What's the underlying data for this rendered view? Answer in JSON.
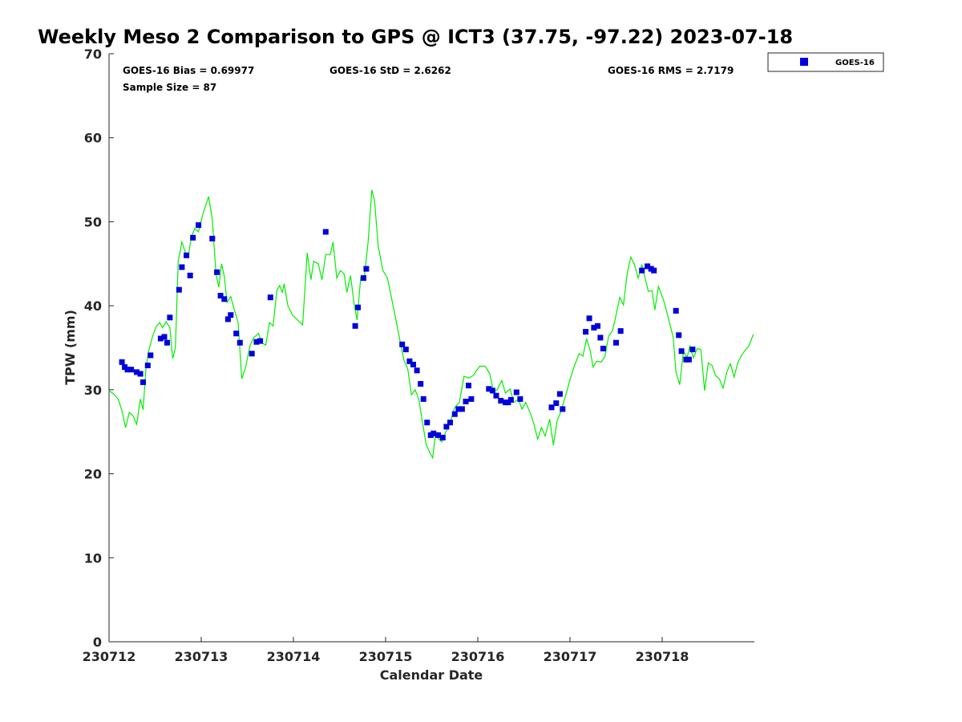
{
  "chart_data": {
    "type": "scatter",
    "title": "Weekly Meso 2 Comparison to GPS @ ICT3 (37.75, -97.22) 2023-07-18",
    "xlabel": "Calendar Date",
    "ylabel": "TPW (mm)",
    "xlim": [
      230712.0,
      230719.0
    ],
    "ylim": [
      0,
      70
    ],
    "x_ticks": [
      230712,
      230713,
      230714,
      230715,
      230716,
      230717,
      230718
    ],
    "x_tick_labels": [
      "230712",
      "230713",
      "230714",
      "230715",
      "230716",
      "230717",
      "230718"
    ],
    "y_ticks": [
      0,
      10,
      20,
      30,
      40,
      50,
      60,
      70
    ],
    "y_tick_labels": [
      "0",
      "10",
      "20",
      "30",
      "40",
      "50",
      "60",
      "70"
    ],
    "grid": false,
    "legend_position": "top-right, outside plot",
    "stats": {
      "bias": "GOES-16 Bias = 0.69977",
      "std": "GOES-16 StD = 2.6262",
      "rms": "GOES-16 RMS = 2.7179",
      "sample_size": "Sample Size = 87"
    },
    "series": [
      {
        "name": "GOES-16",
        "type": "scatter",
        "color": "#0000dd",
        "marker": "square",
        "points": [
          [
            230712.14,
            33.3
          ],
          [
            230712.17,
            32.7
          ],
          [
            230712.2,
            32.4
          ],
          [
            230712.24,
            32.4
          ],
          [
            230712.3,
            32.1
          ],
          [
            230712.34,
            31.9
          ],
          [
            230712.37,
            30.9
          ],
          [
            230712.42,
            32.9
          ],
          [
            230712.45,
            34.1
          ],
          [
            230712.56,
            36.1
          ],
          [
            230712.6,
            36.3
          ],
          [
            230712.63,
            35.6
          ],
          [
            230712.66,
            38.6
          ],
          [
            230712.76,
            41.9
          ],
          [
            230712.79,
            44.6
          ],
          [
            230712.84,
            46.0
          ],
          [
            230712.88,
            43.6
          ],
          [
            230712.91,
            48.1
          ],
          [
            230712.97,
            49.6
          ],
          [
            230713.12,
            48.0
          ],
          [
            230713.17,
            44.0
          ],
          [
            230713.21,
            41.2
          ],
          [
            230713.25,
            40.8
          ],
          [
            230713.29,
            38.4
          ],
          [
            230713.32,
            38.9
          ],
          [
            230713.38,
            36.7
          ],
          [
            230713.42,
            35.6
          ],
          [
            230713.55,
            34.3
          ],
          [
            230713.6,
            35.7
          ],
          [
            230713.64,
            35.8
          ],
          [
            230713.75,
            41.0
          ],
          [
            230714.35,
            48.8
          ],
          [
            230714.67,
            37.6
          ],
          [
            230714.7,
            39.8
          ],
          [
            230714.76,
            43.3
          ],
          [
            230714.79,
            44.4
          ],
          [
            230715.18,
            35.4
          ],
          [
            230715.22,
            34.8
          ],
          [
            230715.26,
            33.4
          ],
          [
            230715.3,
            33.0
          ],
          [
            230715.34,
            32.3
          ],
          [
            230715.38,
            30.7
          ],
          [
            230715.41,
            28.9
          ],
          [
            230715.45,
            26.1
          ],
          [
            230715.49,
            24.6
          ],
          [
            230715.52,
            24.8
          ],
          [
            230715.57,
            24.6
          ],
          [
            230715.62,
            24.3
          ],
          [
            230715.66,
            25.6
          ],
          [
            230715.7,
            26.1
          ],
          [
            230715.75,
            27.1
          ],
          [
            230715.79,
            27.7
          ],
          [
            230715.83,
            27.7
          ],
          [
            230715.87,
            28.6
          ],
          [
            230715.9,
            30.5
          ],
          [
            230715.93,
            28.9
          ],
          [
            230716.12,
            30.1
          ],
          [
            230716.16,
            29.9
          ],
          [
            230716.2,
            29.3
          ],
          [
            230716.25,
            28.7
          ],
          [
            230716.3,
            28.5
          ],
          [
            230716.33,
            28.5
          ],
          [
            230716.36,
            28.8
          ],
          [
            230716.42,
            29.7
          ],
          [
            230716.46,
            28.9
          ],
          [
            230716.8,
            27.9
          ],
          [
            230716.85,
            28.4
          ],
          [
            230716.89,
            29.5
          ],
          [
            230716.92,
            27.7
          ],
          [
            230717.17,
            36.9
          ],
          [
            230717.21,
            38.5
          ],
          [
            230717.26,
            37.4
          ],
          [
            230717.3,
            37.6
          ],
          [
            230717.33,
            36.2
          ],
          [
            230717.36,
            34.9
          ],
          [
            230717.5,
            35.6
          ],
          [
            230717.55,
            37.0
          ],
          [
            230717.78,
            44.2
          ],
          [
            230717.84,
            44.7
          ],
          [
            230717.88,
            44.4
          ],
          [
            230717.91,
            44.2
          ],
          [
            230718.15,
            39.4
          ],
          [
            230718.18,
            36.5
          ],
          [
            230718.21,
            34.6
          ],
          [
            230718.26,
            33.6
          ],
          [
            230718.29,
            33.6
          ],
          [
            230718.33,
            34.8
          ]
        ]
      },
      {
        "type": "line",
        "color": "#00ee00",
        "points": [
          [
            230712.0,
            29.9
          ],
          [
            230712.05,
            29.5
          ],
          [
            230712.1,
            28.9
          ],
          [
            230712.14,
            27.5
          ],
          [
            230712.18,
            25.5
          ],
          [
            230712.22,
            27.3
          ],
          [
            230712.26,
            26.9
          ],
          [
            230712.3,
            25.9
          ],
          [
            230712.34,
            28.9
          ],
          [
            230712.37,
            27.6
          ],
          [
            230712.4,
            32.5
          ],
          [
            230712.43,
            34.6
          ],
          [
            230712.47,
            36.3
          ],
          [
            230712.51,
            37.5
          ],
          [
            230712.55,
            38.0
          ],
          [
            230712.58,
            37.4
          ],
          [
            230712.62,
            38.1
          ],
          [
            230712.66,
            37.4
          ],
          [
            230712.69,
            33.7
          ],
          [
            230712.72,
            35.0
          ],
          [
            230712.75,
            45.3
          ],
          [
            230712.79,
            47.6
          ],
          [
            230712.83,
            46.3
          ],
          [
            230712.86,
            45.8
          ],
          [
            230712.89,
            48.1
          ],
          [
            230712.93,
            49.2
          ],
          [
            230712.97,
            48.8
          ],
          [
            230713.02,
            51.0
          ],
          [
            230713.08,
            53.0
          ],
          [
            230713.12,
            50.3
          ],
          [
            230713.16,
            43.8
          ],
          [
            230713.19,
            42.2
          ],
          [
            230713.22,
            45.0
          ],
          [
            230713.25,
            43.5
          ],
          [
            230713.28,
            40.4
          ],
          [
            230713.32,
            41.1
          ],
          [
            230713.36,
            39.5
          ],
          [
            230713.4,
            38.0
          ],
          [
            230713.44,
            31.3
          ],
          [
            230713.48,
            32.6
          ],
          [
            230713.53,
            35.3
          ],
          [
            230713.57,
            36.2
          ],
          [
            230713.62,
            36.7
          ],
          [
            230713.66,
            35.6
          ],
          [
            230713.7,
            35.3
          ],
          [
            230713.74,
            38.0
          ],
          [
            230713.78,
            37.6
          ],
          [
            230713.82,
            41.8
          ],
          [
            230713.85,
            42.4
          ],
          [
            230713.88,
            41.6
          ],
          [
            230713.9,
            42.6
          ],
          [
            230713.94,
            40.0
          ],
          [
            230713.99,
            38.9
          ],
          [
            230714.1,
            37.7
          ],
          [
            230714.15,
            46.3
          ],
          [
            230714.19,
            43.1
          ],
          [
            230714.22,
            45.3
          ],
          [
            230714.27,
            45.0
          ],
          [
            230714.31,
            43.1
          ],
          [
            230714.35,
            46.1
          ],
          [
            230714.4,
            46.1
          ],
          [
            230714.43,
            47.6
          ],
          [
            230714.47,
            43.3
          ],
          [
            230714.51,
            44.2
          ],
          [
            230714.55,
            43.8
          ],
          [
            230714.58,
            41.6
          ],
          [
            230714.62,
            43.6
          ],
          [
            230714.66,
            40.1
          ],
          [
            230714.69,
            38.3
          ],
          [
            230714.73,
            43.4
          ],
          [
            230714.77,
            43.5
          ],
          [
            230714.81,
            47.5
          ],
          [
            230714.85,
            53.8
          ],
          [
            230714.88,
            52.5
          ],
          [
            230714.92,
            47.1
          ],
          [
            230714.97,
            44.2
          ],
          [
            230715.02,
            43.3
          ],
          [
            230715.07,
            40.6
          ],
          [
            230715.12,
            37.9
          ],
          [
            230715.16,
            35.6
          ],
          [
            230715.2,
            33.5
          ],
          [
            230715.24,
            32.5
          ],
          [
            230715.28,
            29.4
          ],
          [
            230715.32,
            30.0
          ],
          [
            230715.36,
            28.9
          ],
          [
            230715.4,
            26.1
          ],
          [
            230715.44,
            23.5
          ],
          [
            230715.48,
            22.5
          ],
          [
            230715.51,
            21.9
          ],
          [
            230715.54,
            24.6
          ],
          [
            230715.58,
            24.1
          ],
          [
            230715.61,
            23.8
          ],
          [
            230715.65,
            24.9
          ],
          [
            230715.7,
            26.1
          ],
          [
            230715.75,
            27.9
          ],
          [
            230715.8,
            28.5
          ],
          [
            230715.85,
            31.6
          ],
          [
            230715.9,
            31.4
          ],
          [
            230715.95,
            31.7
          ],
          [
            230716.02,
            32.8
          ],
          [
            230716.08,
            32.8
          ],
          [
            230716.13,
            31.9
          ],
          [
            230716.17,
            29.8
          ],
          [
            230716.21,
            30.0
          ],
          [
            230716.26,
            31.1
          ],
          [
            230716.3,
            29.6
          ],
          [
            230716.35,
            30.1
          ],
          [
            230716.39,
            28.5
          ],
          [
            230716.44,
            28.9
          ],
          [
            230716.48,
            27.7
          ],
          [
            230716.52,
            28.5
          ],
          [
            230716.57,
            27.2
          ],
          [
            230716.61,
            25.9
          ],
          [
            230716.65,
            24.1
          ],
          [
            230716.69,
            25.5
          ],
          [
            230716.73,
            24.5
          ],
          [
            230716.78,
            26.5
          ],
          [
            230716.82,
            23.4
          ],
          [
            230716.86,
            26.3
          ],
          [
            230716.9,
            27.4
          ],
          [
            230716.95,
            29.2
          ],
          [
            230717.0,
            31.2
          ],
          [
            230717.05,
            32.9
          ],
          [
            230717.1,
            34.3
          ],
          [
            230717.14,
            34.0
          ],
          [
            230717.18,
            36.1
          ],
          [
            230717.22,
            34.6
          ],
          [
            230717.25,
            32.7
          ],
          [
            230717.29,
            33.4
          ],
          [
            230717.34,
            33.3
          ],
          [
            230717.38,
            34.0
          ],
          [
            230717.42,
            36.4
          ],
          [
            230717.46,
            37.0
          ],
          [
            230717.5,
            38.9
          ],
          [
            230717.54,
            41.0
          ],
          [
            230717.58,
            40.1
          ],
          [
            230717.62,
            43.8
          ],
          [
            230717.66,
            45.8
          ],
          [
            230717.7,
            44.9
          ],
          [
            230717.74,
            43.3
          ],
          [
            230717.78,
            44.9
          ],
          [
            230717.81,
            43.5
          ],
          [
            230717.85,
            41.7
          ],
          [
            230717.89,
            41.8
          ],
          [
            230717.92,
            39.5
          ],
          [
            230717.96,
            42.3
          ],
          [
            230718.02,
            40.5
          ],
          [
            230718.07,
            38.4
          ],
          [
            230718.12,
            36.2
          ],
          [
            230718.15,
            32.1
          ],
          [
            230718.19,
            30.6
          ],
          [
            230718.23,
            34.6
          ],
          [
            230718.27,
            33.8
          ],
          [
            230718.3,
            35.2
          ],
          [
            230718.34,
            33.8
          ],
          [
            230718.38,
            34.9
          ],
          [
            230718.42,
            34.8
          ],
          [
            230718.46,
            29.9
          ],
          [
            230718.5,
            33.2
          ],
          [
            230718.54,
            32.9
          ],
          [
            230718.58,
            31.7
          ],
          [
            230718.62,
            31.3
          ],
          [
            230718.66,
            30.2
          ],
          [
            230718.7,
            32.1
          ],
          [
            230718.74,
            33.1
          ],
          [
            230718.78,
            31.5
          ],
          [
            230718.82,
            33.2
          ],
          [
            230718.86,
            34.1
          ],
          [
            230718.9,
            34.7
          ],
          [
            230718.94,
            35.2
          ],
          [
            230718.99,
            36.6
          ]
        ]
      }
    ]
  }
}
